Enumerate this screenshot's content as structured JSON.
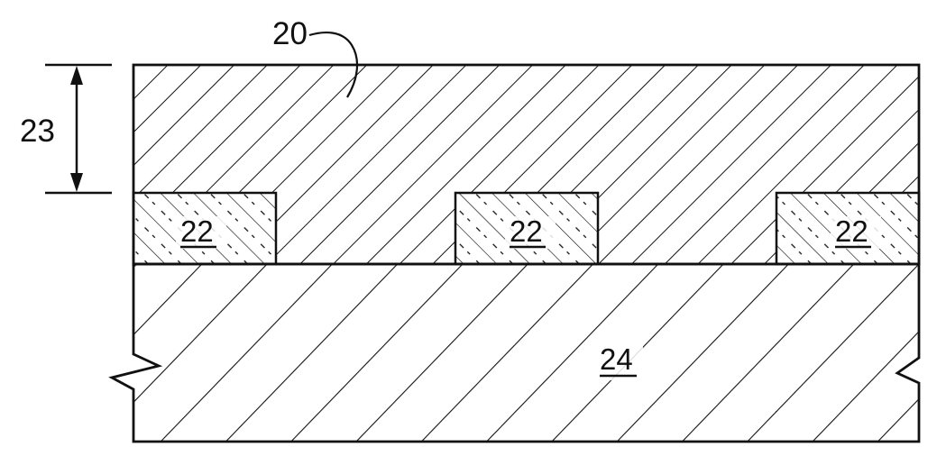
{
  "labels": {
    "top_layer": "20",
    "thickness": "23",
    "feature_left": "22",
    "feature_middle": "22",
    "feature_right": "22",
    "substrate": "24"
  }
}
